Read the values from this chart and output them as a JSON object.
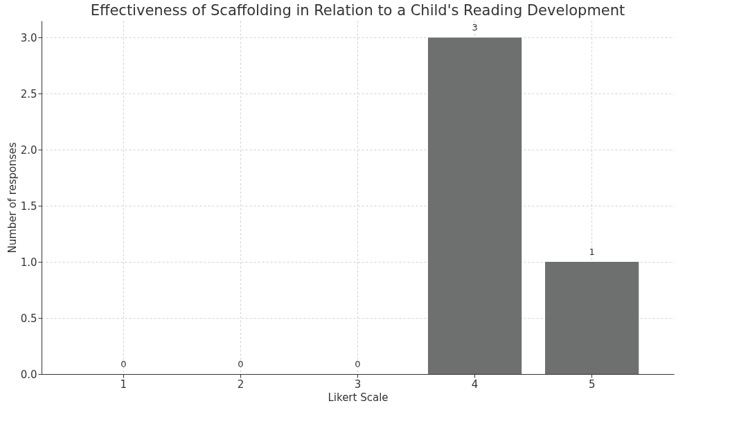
{
  "chart_data": {
    "type": "bar",
    "title": "Effectiveness of Scaffolding in Relation to a Child's Reading Development",
    "xlabel": "Likert Scale",
    "ylabel": "Number of responses",
    "categories": [
      "1",
      "2",
      "3",
      "4",
      "5"
    ],
    "values": [
      0,
      0,
      0,
      3,
      1
    ],
    "color": "#6e7070",
    "ylim": [
      0,
      3.15
    ],
    "yticks": [
      {
        "value": 0,
        "label": "0.0"
      },
      {
        "value": 0.5,
        "label": "0.5"
      },
      {
        "value": 1,
        "label": "1.0"
      },
      {
        "value": 1.5,
        "label": "1.5"
      },
      {
        "value": 2,
        "label": "2.0"
      },
      {
        "value": 2.5,
        "label": "2.5"
      },
      {
        "value": 3,
        "label": "3.0"
      }
    ],
    "grid": true,
    "data_labels": true
  }
}
